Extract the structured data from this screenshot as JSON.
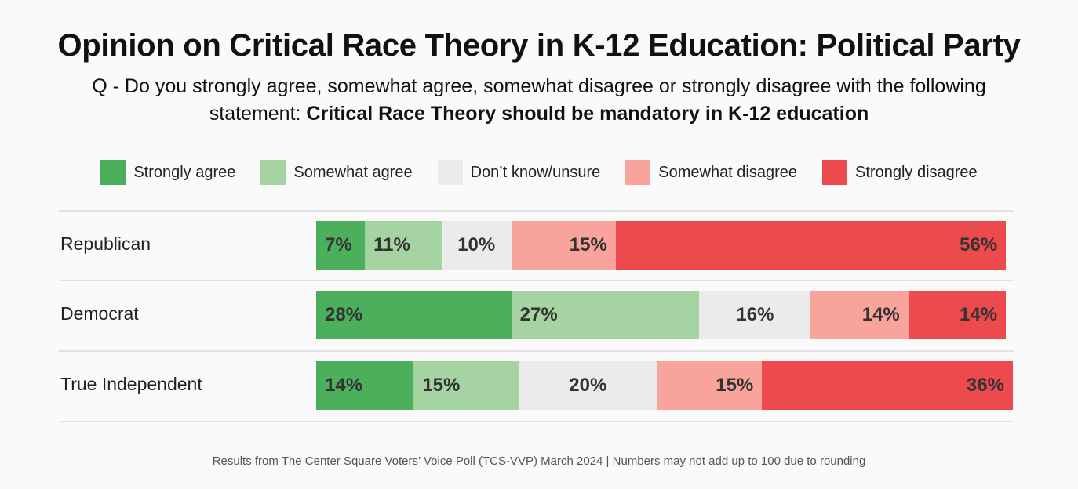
{
  "chart_data": {
    "type": "bar",
    "orientation": "horizontal-stacked-100",
    "title": "Opinion on Critical Race Theory in K-12 Education: Political Party",
    "subtitle_line1": "Q -  Do you strongly agree, somewhat agree, somewhat disagree or strongly disagree with the following",
    "subtitle_line2_prefix": "statement: ",
    "subtitle_line2_bold": "Critical Race Theory should be mandatory in K-12 education",
    "legend_placement": "top",
    "categories": [
      "Republican",
      "Democrat",
      "True Independent"
    ],
    "series": [
      {
        "name": "Strongly agree",
        "color": "#4caf5c",
        "values": [
          7,
          28,
          14
        ]
      },
      {
        "name": "Somewhat agree",
        "color": "#a5d3a2",
        "values": [
          11,
          27,
          15
        ]
      },
      {
        "name": "Don’t know/unsure",
        "color": "#ebebeb",
        "values": [
          10,
          16,
          20
        ]
      },
      {
        "name": "Somewhat disagree",
        "color": "#f8a39b",
        "values": [
          15,
          14,
          15
        ]
      },
      {
        "name": "Strongly disagree",
        "color": "#ec4a4c",
        "values": [
          56,
          14,
          36
        ]
      }
    ],
    "footer": "Results from The Center Square Voters’ Voice Poll (TCS-VVP) March 2024 | Numbers may not add up to 100 due to rounding"
  }
}
